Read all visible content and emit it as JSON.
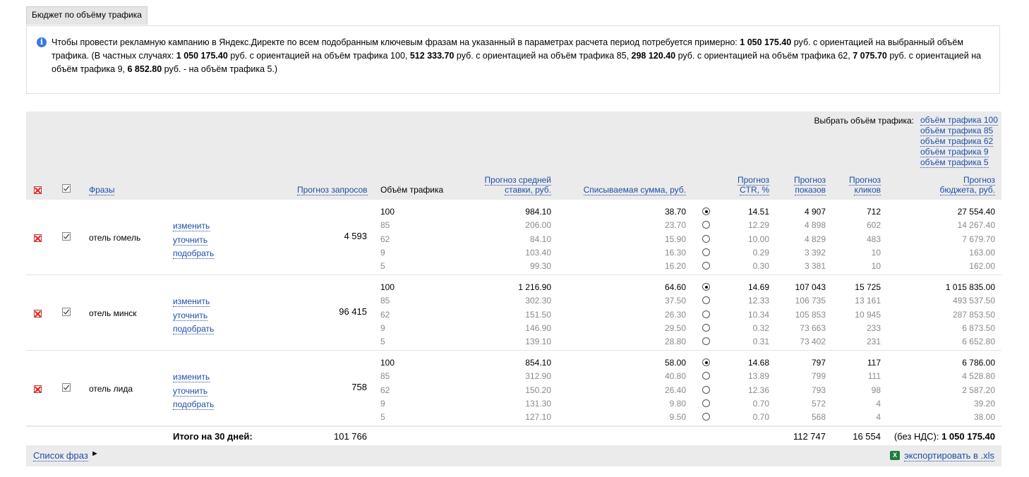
{
  "tab": {
    "label": "Бюджет по объёму трафика"
  },
  "info": {
    "t1": "Чтобы провести рекламную кампанию в Яндекс.Директе по всем подобранным ключевым фразам на указанный в параметрах расчета период потребуется примерно: ",
    "b1": "1 050 175.40",
    "t2": " руб. с ориентацией на выбранный объём трафика. (В частных случаях: ",
    "b2": "1 050 175.40",
    "t3": " руб. с ориентацией на объём трафика 100, ",
    "b3": "512 333.70",
    "t4": " руб. с ориентацией на объём трафика 85, ",
    "b4": "298 120.40",
    "t5": " руб. с ориентацией на объём трафика 62, ",
    "b5": "7 075.70",
    "t6": " руб. с ориентацией на объём трафика 9, ",
    "b6": "6 852.80",
    "t7": " руб. - на объём трафика 5.)"
  },
  "chooser": {
    "label": "Выбрать объём трафика:",
    "options": [
      "объём трафика 100",
      "объём трафика 85",
      "объём трафика 62",
      "объём трафика 9",
      "объём трафика 5"
    ]
  },
  "header": {
    "phrases": "Фразы",
    "queries": "Прогноз запросов",
    "volume": "Объём трафика",
    "bid1": "Прогноз средней",
    "bid2": "ставки, руб.",
    "sum": "Списываемая сумма, руб.",
    "ctr1": "Прогноз",
    "ctr2": "CTR, %",
    "imp1": "Прогноз",
    "imp2": "показов",
    "clk1": "Прогноз",
    "clk2": "кликов",
    "bud1": "Прогноз",
    "bud2": "бюджета, руб."
  },
  "actions": {
    "edit": "изменить",
    "refine": "уточнить",
    "pick": "подобрать"
  },
  "groups": [
    {
      "phrase": "отель гомель",
      "queries": "4 593",
      "rows": [
        {
          "vol": "100",
          "bid": "984.10",
          "sum": "38.70",
          "ctr": "14.51",
          "imp": "4 907",
          "clk": "712",
          "bud": "27 554.40"
        },
        {
          "vol": "85",
          "bid": "206.00",
          "sum": "23.70",
          "ctr": "12.29",
          "imp": "4 898",
          "clk": "602",
          "bud": "14 267.40"
        },
        {
          "vol": "62",
          "bid": "84.10",
          "sum": "15.90",
          "ctr": "10.00",
          "imp": "4 829",
          "clk": "483",
          "bud": "7 679.70"
        },
        {
          "vol": "9",
          "bid": "103.40",
          "sum": "16.30",
          "ctr": "0.29",
          "imp": "3 392",
          "clk": "10",
          "bud": "163.00"
        },
        {
          "vol": "5",
          "bid": "99.30",
          "sum": "16.20",
          "ctr": "0.30",
          "imp": "3 381",
          "clk": "10",
          "bud": "162.00"
        }
      ]
    },
    {
      "phrase": "отель минск",
      "queries": "96 415",
      "rows": [
        {
          "vol": "100",
          "bid": "1 216.90",
          "sum": "64.60",
          "ctr": "14.69",
          "imp": "107 043",
          "clk": "15 725",
          "bud": "1 015 835.00"
        },
        {
          "vol": "85",
          "bid": "302.30",
          "sum": "37.50",
          "ctr": "12.33",
          "imp": "106 735",
          "clk": "13 161",
          "bud": "493 537.50"
        },
        {
          "vol": "62",
          "bid": "151.50",
          "sum": "26.30",
          "ctr": "10.34",
          "imp": "105 853",
          "clk": "10 945",
          "bud": "287 853.50"
        },
        {
          "vol": "9",
          "bid": "146.90",
          "sum": "29.50",
          "ctr": "0.32",
          "imp": "73 663",
          "clk": "233",
          "bud": "6 873.50"
        },
        {
          "vol": "5",
          "bid": "139.10",
          "sum": "28.80",
          "ctr": "0.31",
          "imp": "73 402",
          "clk": "231",
          "bud": "6 652.80"
        }
      ]
    },
    {
      "phrase": "отель лида",
      "queries": "758",
      "rows": [
        {
          "vol": "100",
          "bid": "854.10",
          "sum": "58.00",
          "ctr": "14.68",
          "imp": "797",
          "clk": "117",
          "bud": "6 786.00"
        },
        {
          "vol": "85",
          "bid": "312.90",
          "sum": "40.80",
          "ctr": "13.89",
          "imp": "799",
          "clk": "111",
          "bud": "4 528.80"
        },
        {
          "vol": "62",
          "bid": "150.20",
          "sum": "26.40",
          "ctr": "12.36",
          "imp": "793",
          "clk": "98",
          "bud": "2 587.20"
        },
        {
          "vol": "9",
          "bid": "131.30",
          "sum": "9.80",
          "ctr": "0.70",
          "imp": "572",
          "clk": "4",
          "bud": "39.20"
        },
        {
          "vol": "5",
          "bid": "127.10",
          "sum": "9.50",
          "ctr": "0.70",
          "imp": "568",
          "clk": "4",
          "bud": "38.00"
        }
      ]
    }
  ],
  "total": {
    "label": "Итого на 30 дней:",
    "queries": "101 766",
    "imp": "112 747",
    "clk": "16 554",
    "bud_prefix": "(без НДС): ",
    "bud": "1 050 175.40"
  },
  "footer": {
    "phrase_list": "Список фраз",
    "triangle": "►",
    "export": "экспортировать в .xls",
    "xls_icon": "X"
  }
}
